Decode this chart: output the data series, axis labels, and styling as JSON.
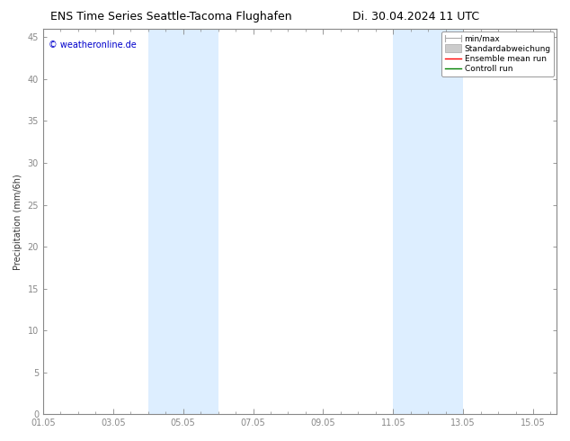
{
  "title_left": "ENS Time Series Seattle-Tacoma Flughafen",
  "title_right": "Di. 30.04.2024 11 UTC",
  "ylabel": "Precipitation (mm/6h)",
  "copyright": "© weatheronline.de",
  "copyright_color": "#0000cc",
  "xlim_start": 0,
  "xlim_end": 14.667,
  "ylim_min": 0,
  "ylim_max": 46,
  "yticks": [
    0,
    5,
    10,
    15,
    20,
    25,
    30,
    35,
    40,
    45
  ],
  "xtick_labels": [
    "01.05",
    "03.05",
    "05.05",
    "07.05",
    "09.05",
    "11.05",
    "13.05",
    "15.05"
  ],
  "xtick_positions": [
    0,
    2,
    4,
    6,
    8,
    10,
    12,
    14
  ],
  "shade_bands": [
    {
      "xmin": 3.0,
      "xmax": 5.0,
      "color": "#ddeeff"
    },
    {
      "xmin": 10.0,
      "xmax": 12.0,
      "color": "#ddeeff"
    }
  ],
  "legend_items": [
    {
      "label": "min/max",
      "color": "#aaaaaa"
    },
    {
      "label": "Standardabweichung",
      "color": "#cccccc"
    },
    {
      "label": "Ensemble mean run",
      "color": "#ff0000"
    },
    {
      "label": "Controll run",
      "color": "#008000"
    }
  ],
  "background_color": "#ffffff",
  "plot_bg_color": "#ffffff",
  "spine_color": "#888888",
  "tick_color": "#888888",
  "title_fontsize": 9,
  "axis_fontsize": 7,
  "tick_fontsize": 7,
  "legend_fontsize": 6.5,
  "copyright_fontsize": 7
}
